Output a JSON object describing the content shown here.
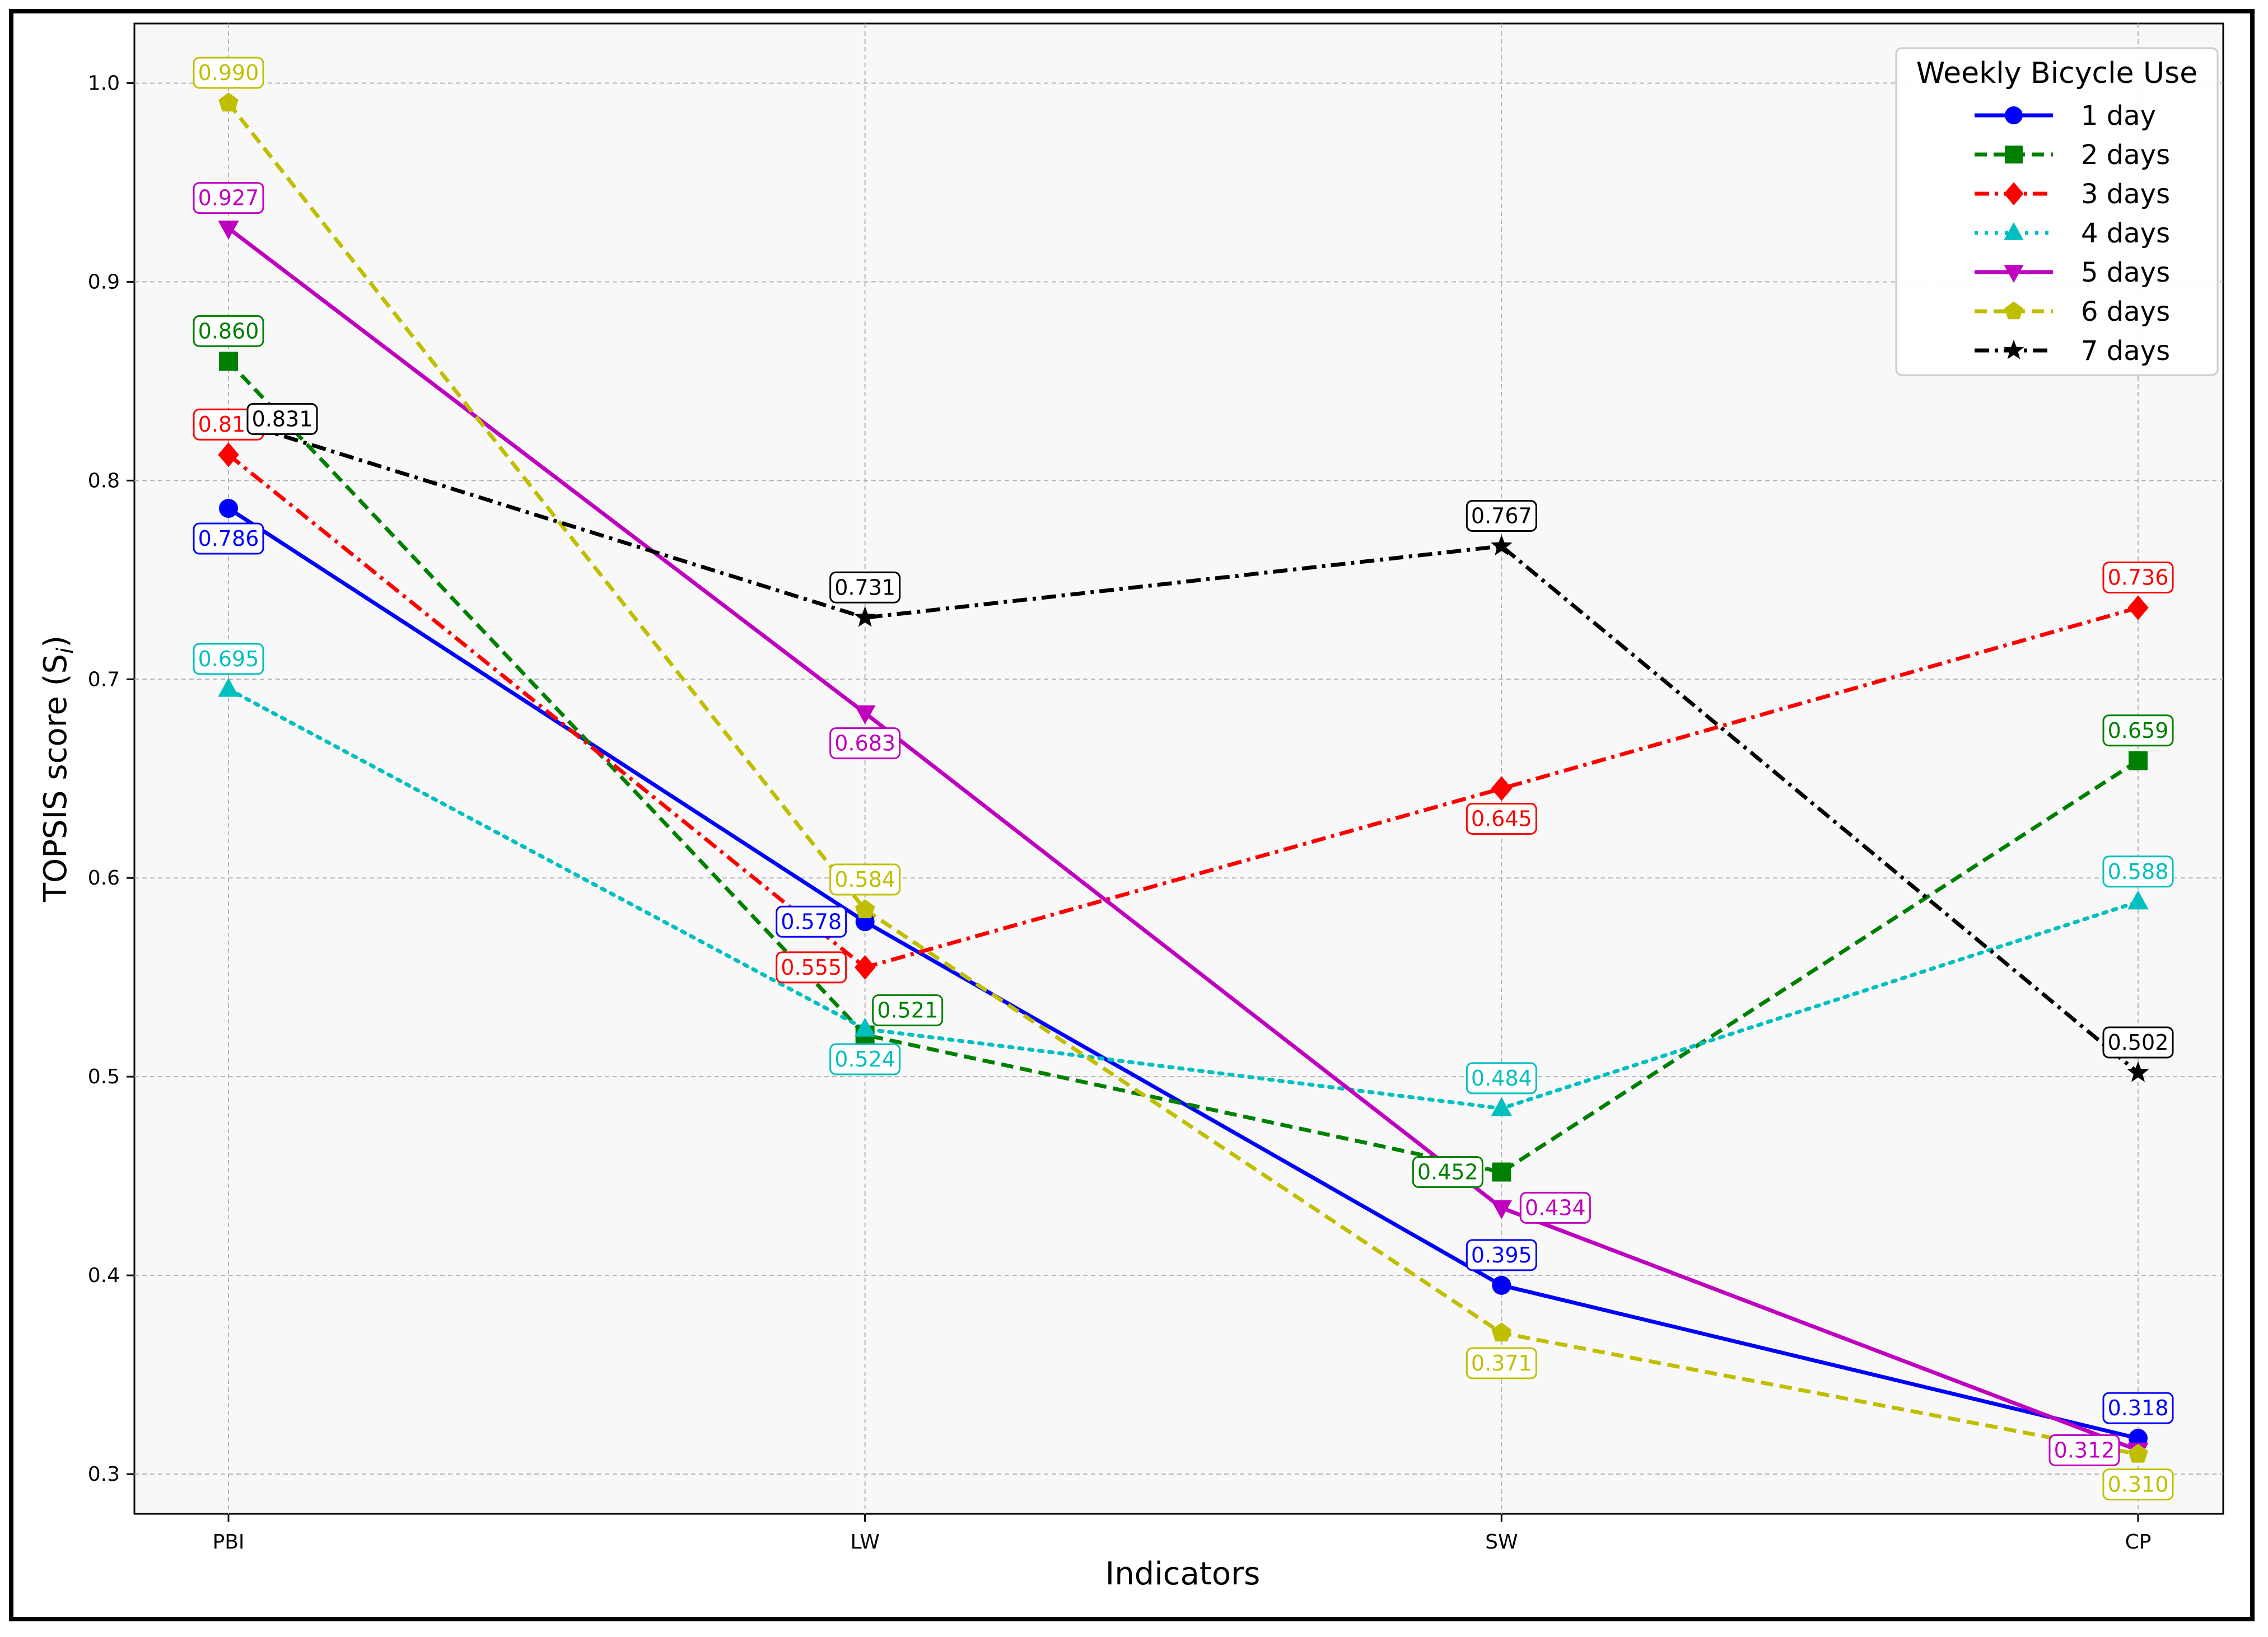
{
  "chart_data": {
    "type": "line",
    "xlabel": "Indicators",
    "ylabel": "TOPSIS score (S",
    "ylabel_sub": "i",
    "ylabel_suffix": ")",
    "categories": [
      "PBI",
      "LW",
      "SW",
      "CP"
    ],
    "ylim": [
      0.28,
      1.03
    ],
    "yticks": [
      0.3,
      0.4,
      0.5,
      0.6,
      0.7,
      0.8,
      0.9,
      1.0
    ],
    "grid": true,
    "legend": {
      "title": "Weekly Bicycle Use",
      "placement": "top-right"
    },
    "series": [
      {
        "name": "1 day",
        "color": "#0000ff",
        "marker": "circle",
        "dash": "solid",
        "values": [
          0.786,
          0.578,
          0.395,
          0.318
        ],
        "labels": [
          "0.786",
          "0.578",
          "0.395",
          "0.318"
        ]
      },
      {
        "name": "2 days",
        "color": "#008000",
        "marker": "square",
        "dash": "dashed",
        "values": [
          0.86,
          0.521,
          0.452,
          0.659
        ],
        "labels": [
          "0.860",
          "0.521",
          "0.452",
          "0.659"
        ]
      },
      {
        "name": "3 days",
        "color": "#ff0000",
        "marker": "diamond",
        "dash": "dashdot",
        "values": [
          0.813,
          0.555,
          0.645,
          0.736
        ],
        "labels": [
          "0.813",
          "0.555",
          "0.645",
          "0.736"
        ]
      },
      {
        "name": "4 days",
        "color": "#00bfbf",
        "marker": "triangle-up",
        "dash": "dotted",
        "values": [
          0.695,
          0.524,
          0.484,
          0.588
        ],
        "labels": [
          "0.695",
          "0.524",
          "0.484",
          "0.588"
        ]
      },
      {
        "name": "5 days",
        "color": "#bf00bf",
        "marker": "triangle-down",
        "dash": "solid",
        "values": [
          0.927,
          0.683,
          0.434,
          0.312
        ],
        "labels": [
          "0.927",
          "0.683",
          "0.434",
          "0.312"
        ]
      },
      {
        "name": "6 days",
        "color": "#bfbf00",
        "marker": "pentagon",
        "dash": "dashed",
        "values": [
          0.99,
          0.584,
          0.371,
          0.31
        ],
        "labels": [
          "0.990",
          "0.584",
          "0.371",
          "0.310"
        ]
      },
      {
        "name": "7 days",
        "color": "#000000",
        "marker": "star",
        "dash": "dashdot",
        "values": [
          0.831,
          0.731,
          0.767,
          0.502
        ],
        "labels": [
          "0.831",
          "0.731",
          "0.767",
          "0.502"
        ]
      }
    ]
  }
}
